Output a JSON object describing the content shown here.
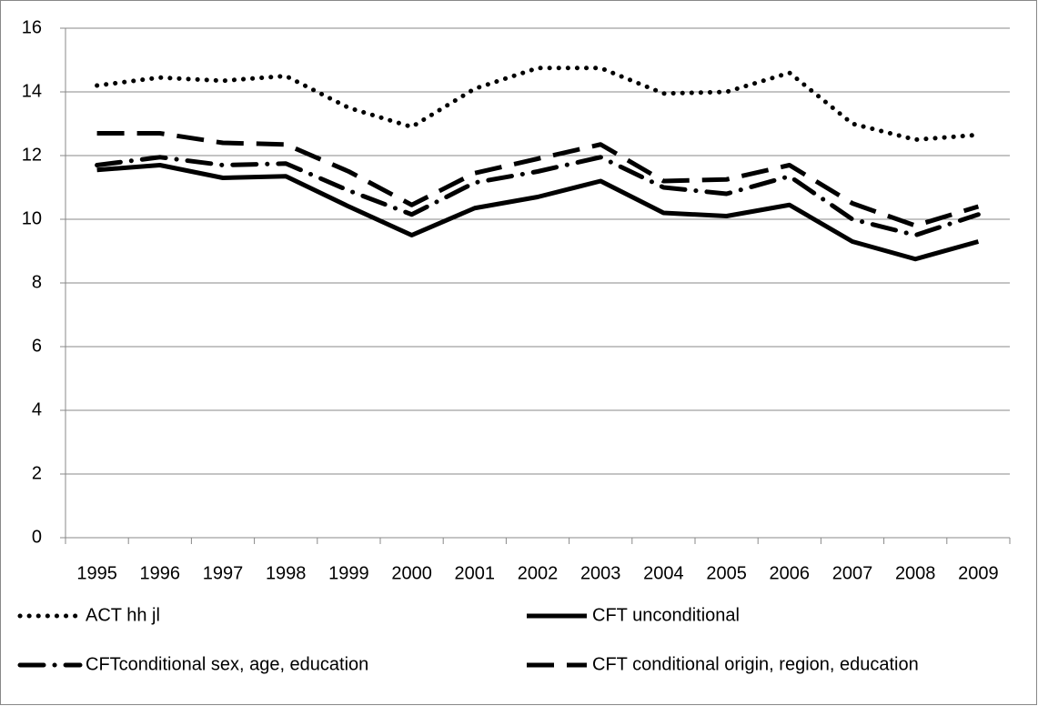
{
  "chart_data": {
    "type": "line",
    "categories": [
      "1995",
      "1996",
      "1997",
      "1998",
      "1999",
      "2000",
      "2001",
      "2002",
      "2003",
      "2004",
      "2005",
      "2006",
      "2007",
      "2008",
      "2009"
    ],
    "series": [
      {
        "name": "ACT hh jl",
        "color": "#000000",
        "line_style": "dotted",
        "values": [
          14.2,
          14.45,
          14.35,
          14.5,
          13.5,
          12.9,
          14.1,
          14.75,
          14.75,
          13.95,
          14.0,
          14.6,
          13.0,
          12.5,
          12.65
        ]
      },
      {
        "name": "CFT unconditional",
        "color": "#000000",
        "line_style": "solid",
        "values": [
          11.55,
          11.7,
          11.3,
          11.35,
          10.4,
          9.5,
          10.35,
          10.7,
          11.2,
          10.2,
          10.1,
          10.45,
          9.3,
          8.75,
          9.3
        ]
      },
      {
        "name": "CFTconditional sex, age, education",
        "color": "#000000",
        "line_style": "dashdot",
        "values": [
          11.7,
          11.95,
          11.7,
          11.75,
          10.9,
          10.15,
          11.15,
          11.5,
          11.95,
          11.0,
          10.8,
          11.35,
          10.0,
          9.5,
          10.15
        ]
      },
      {
        "name": "CFT conditional origin, region, education",
        "color": "#000000",
        "line_style": "dashed",
        "values": [
          12.7,
          12.7,
          12.4,
          12.35,
          11.5,
          10.45,
          11.45,
          11.9,
          12.35,
          11.2,
          11.25,
          11.7,
          10.5,
          9.8,
          10.4
        ]
      }
    ],
    "ylim": [
      0,
      16
    ],
    "yticks": [
      0,
      2,
      4,
      6,
      8,
      10,
      12,
      14,
      16
    ],
    "grid": true
  }
}
